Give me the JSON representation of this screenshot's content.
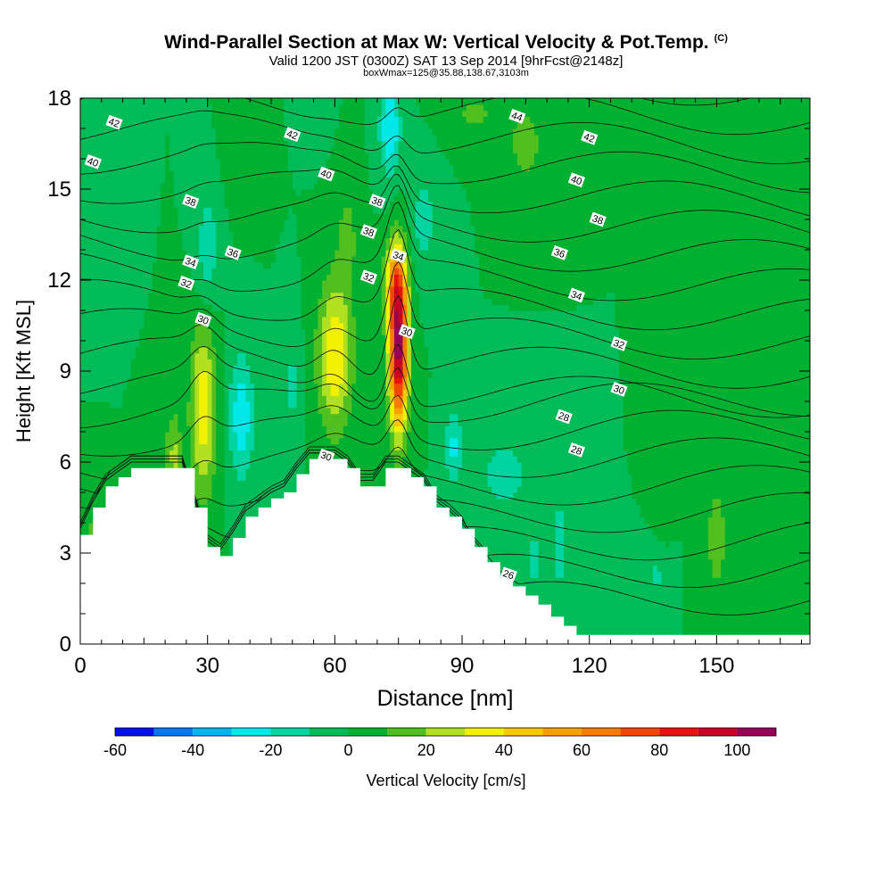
{
  "header": {
    "title": "Wind-Parallel Section at Max W: Vertical Velocity & Pot.Temp.",
    "copyright": "(C)",
    "subtitle": "Valid 1200 JST (0300Z) SAT 13 Sep 2014 [9hrFcst@2148z]",
    "sub_subtitle": "boxWmax=125@35.88,138.67,3103m"
  },
  "chart_data": {
    "type": "heatmap",
    "title": "Wind-Parallel Section at Max W: Vertical Velocity & Pot.Temp.",
    "xlabel": "Distance [nm]",
    "ylabel": "Height [Kft MSL]",
    "xlim": [
      0,
      172
    ],
    "ylim": [
      0,
      18
    ],
    "x_ticks": [
      0,
      30,
      60,
      90,
      120,
      150
    ],
    "y_ticks": [
      0,
      3,
      6,
      9,
      12,
      15,
      18
    ],
    "colorbar": {
      "label": "Vertical Velocity [cm/s]",
      "ticks": [
        -60,
        -40,
        -20,
        0,
        20,
        40,
        60,
        80,
        100
      ],
      "bounds": [
        -60,
        -50,
        -40,
        -30,
        -20,
        -10,
        0,
        10,
        20,
        30,
        40,
        50,
        60,
        70,
        80,
        90,
        100,
        110
      ],
      "colors": [
        "#0010e8",
        "#0078f0",
        "#00b4f0",
        "#00e8e8",
        "#00d4a0",
        "#00bc58",
        "#00b030",
        "#50c020",
        "#b0e020",
        "#f0f000",
        "#f8c800",
        "#f8a000",
        "#f87c00",
        "#f04800",
        "#e81010",
        "#c80028",
        "#980058",
        "#600080"
      ]
    },
    "background_w": 0,
    "updraft_cells": [
      {
        "x": 29,
        "y": 7.8,
        "sx": 3.0,
        "sy": 2.8,
        "w": 38
      },
      {
        "x": 60,
        "y": 9.5,
        "sx": 4.0,
        "sy": 2.4,
        "w": 40
      },
      {
        "x": 75,
        "y": 9.8,
        "sx": 2.2,
        "sy": 2.6,
        "w": 108
      },
      {
        "x": 74,
        "y": 12.0,
        "sx": 2.5,
        "sy": 1.2,
        "w": 35
      },
      {
        "x": 150,
        "y": 3.5,
        "sx": 3.0,
        "sy": 2.0,
        "w": 15
      },
      {
        "x": 105,
        "y": 16.5,
        "sx": 4.0,
        "sy": 1.2,
        "w": 16
      },
      {
        "x": 93,
        "y": 17.5,
        "sx": 6.0,
        "sy": 0.8,
        "w": 12
      },
      {
        "x": 39,
        "y": 16.5,
        "sx": 4.0,
        "sy": 1.5,
        "w": 10
      },
      {
        "x": 63,
        "y": 13.5,
        "sx": 3.0,
        "sy": 2.0,
        "w": 12
      },
      {
        "x": 3,
        "y": 3.5,
        "sx": 1.5,
        "sy": 0.8,
        "w": 18
      },
      {
        "x": 137,
        "y": 5.0,
        "sx": 2.0,
        "sy": 2.0,
        "w": 6
      },
      {
        "x": 22,
        "y": 6.2,
        "sx": 2.0,
        "sy": 1.5,
        "w": 22
      }
    ],
    "downdraft_cells": [
      {
        "x": 38,
        "y": 7.5,
        "sx": 3.0,
        "sy": 2.0,
        "w": -28
      },
      {
        "x": 73,
        "y": 17.0,
        "sx": 2.5,
        "sy": 1.5,
        "w": -30
      },
      {
        "x": 30,
        "y": 13.0,
        "sx": 2.5,
        "sy": 2.0,
        "w": -18
      },
      {
        "x": 81,
        "y": 14.0,
        "sx": 3.0,
        "sy": 1.6,
        "w": -15
      },
      {
        "x": 88,
        "y": 6.5,
        "sx": 2.0,
        "sy": 1.3,
        "w": -22
      },
      {
        "x": 100,
        "y": 5.6,
        "sx": 6.0,
        "sy": 1.2,
        "w": -15
      },
      {
        "x": 107,
        "y": 2.8,
        "sx": 2.5,
        "sy": 1.5,
        "w": -12
      },
      {
        "x": 113,
        "y": 3.3,
        "sx": 1.2,
        "sy": 1.3,
        "w": -22
      },
      {
        "x": 125,
        "y": 1.5,
        "sx": 2.5,
        "sy": 1.2,
        "w": -10
      },
      {
        "x": 136,
        "y": 2.3,
        "sx": 2.5,
        "sy": 1.0,
        "w": -12
      },
      {
        "x": 3,
        "y": 16.5,
        "sx": 2.0,
        "sy": 1.5,
        "w": -10
      },
      {
        "x": 12,
        "y": 17.0,
        "sx": 2.0,
        "sy": 1.5,
        "w": -10
      },
      {
        "x": 55,
        "y": 17.5,
        "sx": 3.0,
        "sy": 1.0,
        "w": -10
      },
      {
        "x": 50,
        "y": 8.5,
        "sx": 2.0,
        "sy": 2.0,
        "w": -12
      }
    ],
    "theta_lines": {
      "values": [
        26,
        27,
        28,
        29,
        30,
        31,
        32,
        33,
        34,
        35,
        36,
        37,
        38,
        39,
        40,
        41,
        42,
        43,
        44,
        45
      ],
      "labeled": [
        {
          "label": "44",
          "x": 103,
          "y": 17.4
        },
        {
          "label": "42",
          "x": 8,
          "y": 17.2
        },
        {
          "label": "42",
          "x": 50,
          "y": 16.8
        },
        {
          "label": "42",
          "x": 120,
          "y": 16.7
        },
        {
          "label": "40",
          "x": 3,
          "y": 15.9
        },
        {
          "label": "40",
          "x": 58,
          "y": 15.5
        },
        {
          "label": "40",
          "x": 117,
          "y": 15.3
        },
        {
          "label": "38",
          "x": 26,
          "y": 14.6
        },
        {
          "label": "38",
          "x": 70,
          "y": 14.6
        },
        {
          "label": "38",
          "x": 68,
          "y": 13.6
        },
        {
          "label": "38",
          "x": 122,
          "y": 14.0
        },
        {
          "label": "36",
          "x": 36,
          "y": 12.9
        },
        {
          "label": "36",
          "x": 113,
          "y": 12.9
        },
        {
          "label": "34",
          "x": 26,
          "y": 12.6
        },
        {
          "label": "34",
          "x": 75,
          "y": 12.8
        },
        {
          "label": "34",
          "x": 117,
          "y": 11.5
        },
        {
          "label": "32",
          "x": 25,
          "y": 11.9
        },
        {
          "label": "32",
          "x": 68,
          "y": 12.1
        },
        {
          "label": "32",
          "x": 127,
          "y": 9.9
        },
        {
          "label": "30",
          "x": 29,
          "y": 10.7
        },
        {
          "label": "30",
          "x": 77,
          "y": 10.3
        },
        {
          "label": "30",
          "x": 58,
          "y": 6.2
        },
        {
          "label": "30",
          "x": 127,
          "y": 8.4
        },
        {
          "label": "28",
          "x": 114,
          "y": 7.5
        },
        {
          "label": "28",
          "x": 117,
          "y": 6.4
        },
        {
          "label": "26",
          "x": 101,
          "y": 2.3
        }
      ]
    },
    "terrain": {
      "x": [
        0,
        3,
        6,
        9,
        12,
        15,
        18,
        21,
        24,
        27,
        30,
        33,
        36,
        39,
        42,
        45,
        48,
        51,
        54,
        57,
        60,
        63,
        66,
        69,
        72,
        75,
        78,
        81,
        84,
        87,
        90,
        93,
        96,
        99,
        102,
        105,
        108,
        111,
        114,
        117,
        120,
        123,
        126,
        129,
        132,
        135,
        138,
        141,
        144,
        147,
        150,
        153,
        156,
        159,
        162,
        165,
        168,
        172
      ],
      "height": [
        3.6,
        4.5,
        5.2,
        5.5,
        5.8,
        5.8,
        5.8,
        5.8,
        5.8,
        4.5,
        3.2,
        2.9,
        3.5,
        4.2,
        4.5,
        4.8,
        5.0,
        5.6,
        6.1,
        6.1,
        6.1,
        5.8,
        5.2,
        5.2,
        5.8,
        5.8,
        5.5,
        5.2,
        4.5,
        4.2,
        3.8,
        3.2,
        2.7,
        2.2,
        1.9,
        1.6,
        1.3,
        0.9,
        0.6,
        0.3,
        0.3,
        0.3,
        0.3,
        0.3,
        0.3,
        0.3,
        0.3,
        0.3,
        0.3,
        0.3,
        0.3,
        0.3,
        0.3,
        0.3,
        0.3,
        0.3,
        0.3,
        0.3
      ]
    }
  }
}
